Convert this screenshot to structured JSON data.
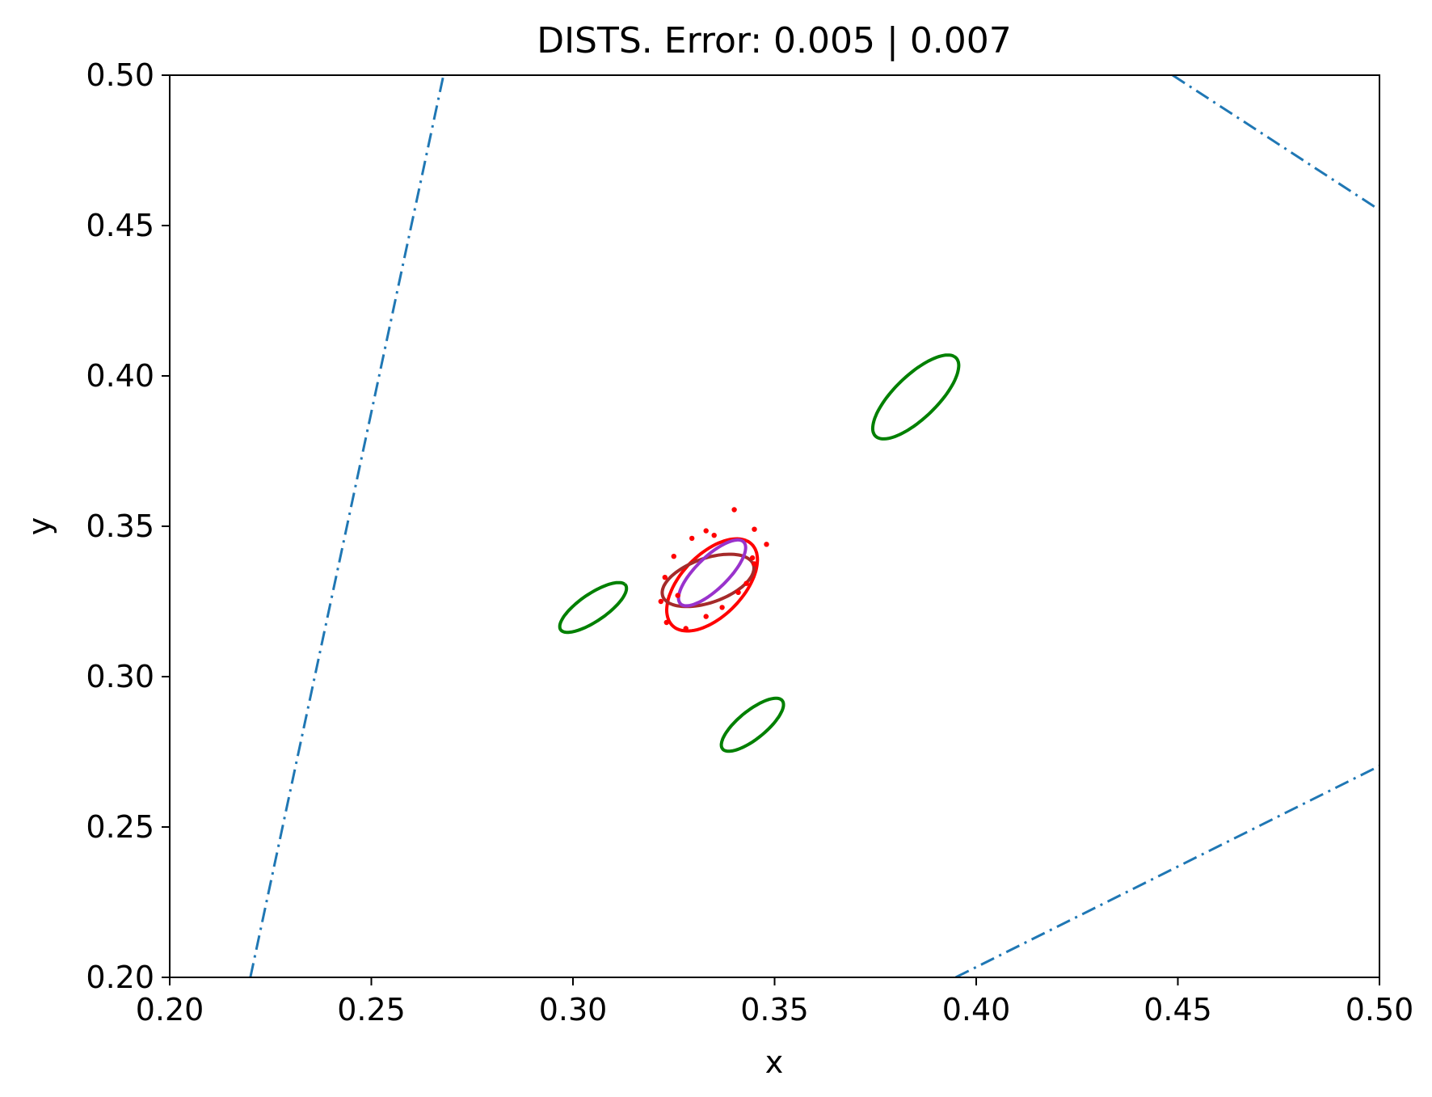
{
  "chart_data": {
    "type": "scatter",
    "title": "DISTS. Error: 0.005 | 0.007",
    "xlabel": "x",
    "ylabel": "y",
    "xlim": [
      0.2,
      0.5
    ],
    "ylim": [
      0.2,
      0.5
    ],
    "xticks": [
      "0.20",
      "0.25",
      "0.30",
      "0.35",
      "0.40",
      "0.45",
      "0.50"
    ],
    "yticks": [
      "0.20",
      "0.25",
      "0.30",
      "0.35",
      "0.40",
      "0.45",
      "0.50"
    ],
    "grid": false,
    "colors": {
      "boundary": "#1f77b4",
      "green": "#008000",
      "red": "#ff0000",
      "brown": "#a52a2a",
      "purple": "#9932cc"
    },
    "boundary_lines": [
      {
        "points": [
          [
            0.22,
            0.2
          ],
          [
            0.2679,
            0.5
          ]
        ]
      },
      {
        "points": [
          [
            0.4487,
            0.5
          ],
          [
            0.5,
            0.4552
          ]
        ]
      },
      {
        "points": [
          [
            0.3949,
            0.2
          ],
          [
            0.5,
            0.2703
          ]
        ]
      }
    ],
    "ellipses": [
      {
        "color": "green",
        "cx": 0.385,
        "cy": 0.393,
        "rx": 0.0165,
        "ry": 0.006,
        "angle_deg": 55
      },
      {
        "color": "green",
        "cx": 0.305,
        "cy": 0.323,
        "rx": 0.011,
        "ry": 0.004,
        "angle_deg": 45
      },
      {
        "color": "green",
        "cx": 0.3445,
        "cy": 0.284,
        "rx": 0.011,
        "ry": 0.004,
        "angle_deg": 50
      },
      {
        "color": "red",
        "cx": 0.3345,
        "cy": 0.3305,
        "rx": 0.017,
        "ry": 0.0085,
        "angle_deg": 60
      },
      {
        "color": "brown",
        "cx": 0.3335,
        "cy": 0.332,
        "rx": 0.0125,
        "ry": 0.007,
        "angle_deg": 30
      },
      {
        "color": "purple",
        "cx": 0.3345,
        "cy": 0.3345,
        "rx": 0.013,
        "ry": 0.0045,
        "angle_deg": 55
      }
    ],
    "scatter_points": [
      [
        0.34,
        0.3555
      ],
      [
        0.345,
        0.349
      ],
      [
        0.348,
        0.344
      ],
      [
        0.333,
        0.3485
      ],
      [
        0.335,
        0.347
      ],
      [
        0.3295,
        0.346
      ],
      [
        0.3445,
        0.3395
      ],
      [
        0.345,
        0.3375
      ],
      [
        0.325,
        0.34
      ],
      [
        0.3228,
        0.333
      ],
      [
        0.3218,
        0.325
      ],
      [
        0.3232,
        0.318
      ],
      [
        0.328,
        0.316
      ],
      [
        0.333,
        0.32
      ],
      [
        0.337,
        0.323
      ],
      [
        0.341,
        0.328
      ],
      [
        0.326,
        0.327
      ],
      [
        0.343,
        0.331
      ]
    ],
    "scatter_color": "red"
  }
}
